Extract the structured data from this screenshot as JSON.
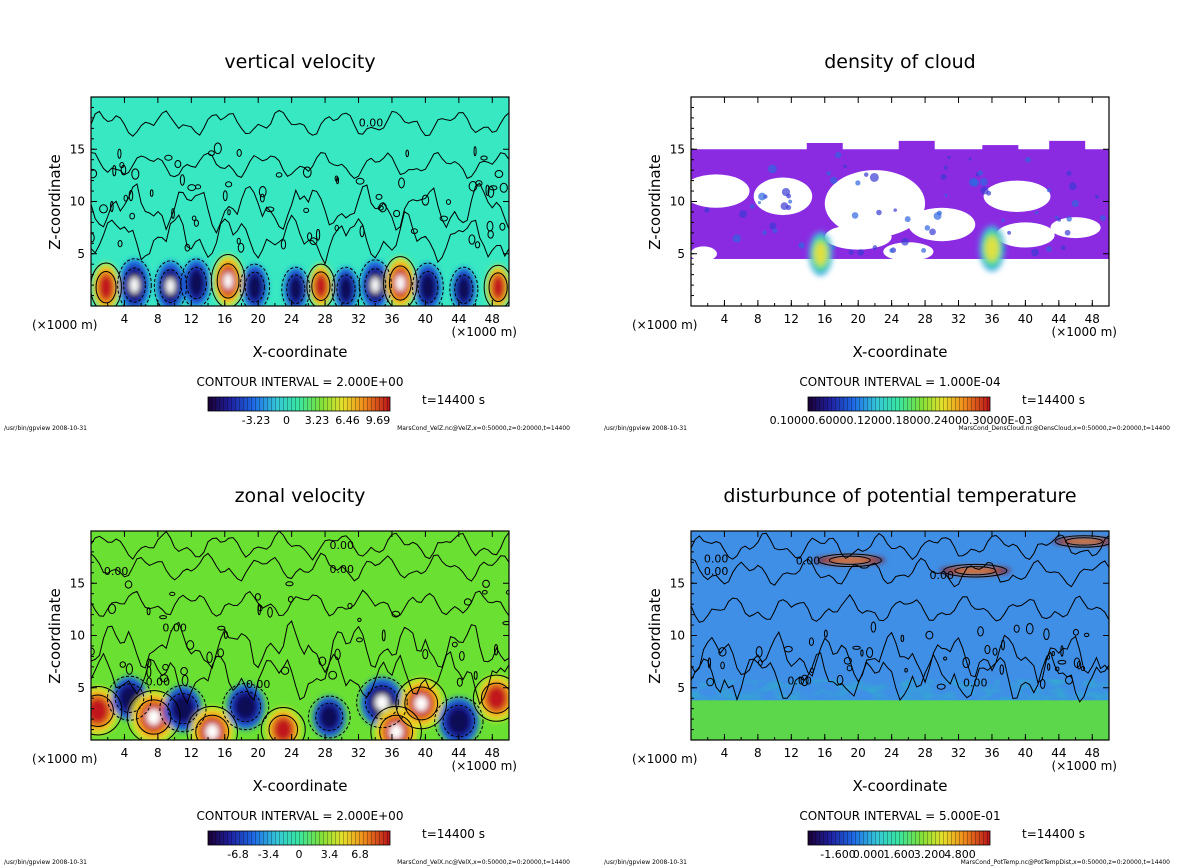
{
  "chart_data": [
    {
      "type": "heatmap",
      "title": "vertical velocity",
      "xlabel": "X-coordinate",
      "ylabel": "Z-coordinate",
      "x_ticks": [
        "4",
        "8",
        "12",
        "16",
        "20",
        "24",
        "28",
        "32",
        "36",
        "40",
        "44",
        "48"
      ],
      "y_ticks": [
        "5",
        "10",
        "15"
      ],
      "x_unit_left": "(×1000 m)",
      "x_unit_right": "(×1000 m)",
      "xlim": [
        0,
        50
      ],
      "ylim": [
        0,
        20
      ],
      "contour_interval": "CONTOUR INTERVAL = 2.000E+00",
      "time": "t=14400 s",
      "colorbar_ticks": [
        "-3.23",
        "0",
        "3.23",
        "6.46",
        "9.69"
      ],
      "contour_labels": [
        "0.00"
      ],
      "colormap": "rainbow",
      "background_color": "#38e8c2",
      "footer_left": "/usr/bin/gpview   2008-10-31",
      "footer_right": "MarsCond_VelZ.nc@VelZ,x=0:50000,z=0:20000,t=14400",
      "features": [
        {
          "x": 1.8,
          "z": 1.8,
          "sign": 1,
          "mag": 0.8
        },
        {
          "x": 5.2,
          "z": 2.0,
          "sign": -1,
          "mag": 1.0
        },
        {
          "x": 9.5,
          "z": 1.9,
          "sign": -1,
          "mag": 0.9
        },
        {
          "x": 12.6,
          "z": 2.2,
          "sign": -1,
          "mag": 0.8
        },
        {
          "x": 16.4,
          "z": 2.4,
          "sign": 1,
          "mag": 1.0
        },
        {
          "x": 19.6,
          "z": 1.8,
          "sign": -1,
          "mag": 0.7
        },
        {
          "x": 24.5,
          "z": 1.6,
          "sign": -1,
          "mag": 0.6
        },
        {
          "x": 27.5,
          "z": 1.9,
          "sign": 1,
          "mag": 0.6
        },
        {
          "x": 30.5,
          "z": 1.6,
          "sign": -1,
          "mag": 0.6
        },
        {
          "x": 34.0,
          "z": 2.0,
          "sign": -1,
          "mag": 0.9
        },
        {
          "x": 37.0,
          "z": 2.2,
          "sign": 1,
          "mag": 1.0
        },
        {
          "x": 40.3,
          "z": 1.8,
          "sign": -1,
          "mag": 0.8
        },
        {
          "x": 44.6,
          "z": 1.6,
          "sign": -1,
          "mag": 0.6
        },
        {
          "x": 48.7,
          "z": 1.8,
          "sign": 1,
          "mag": 0.6
        }
      ]
    },
    {
      "type": "heatmap",
      "title": "density of cloud",
      "xlabel": "X-coordinate",
      "ylabel": "Z-coordinate",
      "x_ticks": [
        "4",
        "8",
        "12",
        "16",
        "20",
        "24",
        "28",
        "32",
        "36",
        "40",
        "44",
        "48"
      ],
      "y_ticks": [
        "5",
        "10",
        "15"
      ],
      "x_unit_left": "(×1000 m)",
      "x_unit_right": "(×1000 m)",
      "xlim": [
        0,
        50
      ],
      "ylim": [
        0,
        20
      ],
      "contour_interval": "CONTOUR INTERVAL = 1.000E-04",
      "time": "t=14400 s",
      "colorbar_ticks": [
        "0.10000.60000.12000.18000.24000.30000E-03"
      ],
      "colormap": "rainbow",
      "background_color": "#ffffff",
      "cloud_color": "#8a2be2",
      "footer_left": "/usr/bin/gpview   2008-10-31",
      "footer_right": "MarsCond_DensCloud.nc@DensCloud,x=0:50000,z=0:20000,t=14400",
      "features": [
        {
          "x": 15.5,
          "z": 5.0,
          "sign": 1,
          "mag": 0.6
        },
        {
          "x": 36.0,
          "z": 5.5,
          "sign": 1,
          "mag": 0.7
        }
      ]
    },
    {
      "type": "heatmap",
      "title": "zonal velocity",
      "xlabel": "X-coordinate",
      "ylabel": "Z-coordinate",
      "x_ticks": [
        "4",
        "8",
        "12",
        "16",
        "20",
        "24",
        "28",
        "32",
        "36",
        "40",
        "44",
        "48"
      ],
      "y_ticks": [
        "5",
        "10",
        "15"
      ],
      "x_unit_left": "(×1000 m)",
      "x_unit_right": "(×1000 m)",
      "xlim": [
        0,
        50
      ],
      "ylim": [
        0,
        20
      ],
      "contour_interval": "CONTOUR INTERVAL = 2.000E+00",
      "time": "t=14400 s",
      "colorbar_ticks": [
        "-6.8",
        "-3.4",
        "0",
        "3.4",
        "6.8"
      ],
      "contour_labels": [
        "0.00"
      ],
      "colormap": "rainbow",
      "background_color": "#6ae033",
      "footer_left": "/usr/bin/gpview   2008-10-31",
      "footer_right": "MarsCond_VelX.nc@VelX,x=0:50000,z=0:20000,t=14400",
      "features": [
        {
          "x": 0.8,
          "z": 2.8,
          "sign": 1,
          "mag": 0.8
        },
        {
          "x": 4.6,
          "z": 4.0,
          "sign": -1,
          "mag": 0.6
        },
        {
          "x": 7.5,
          "z": 2.2,
          "sign": 1,
          "mag": 1.0
        },
        {
          "x": 11.0,
          "z": 3.0,
          "sign": -1,
          "mag": 0.7
        },
        {
          "x": 14.5,
          "z": 0.8,
          "sign": 1,
          "mag": 0.9
        },
        {
          "x": 18.5,
          "z": 3.2,
          "sign": -1,
          "mag": 0.7
        },
        {
          "x": 23.0,
          "z": 1.0,
          "sign": 1,
          "mag": 0.6
        },
        {
          "x": 28.5,
          "z": 2.2,
          "sign": -1,
          "mag": 0.5
        },
        {
          "x": 34.8,
          "z": 3.6,
          "sign": -1,
          "mag": 0.9
        },
        {
          "x": 36.5,
          "z": 0.8,
          "sign": 1,
          "mag": 0.9
        },
        {
          "x": 39.5,
          "z": 3.5,
          "sign": 1,
          "mag": 0.9
        },
        {
          "x": 44.0,
          "z": 1.8,
          "sign": -1,
          "mag": 0.8
        },
        {
          "x": 48.5,
          "z": 4.0,
          "sign": 1,
          "mag": 0.7
        }
      ]
    },
    {
      "type": "heatmap",
      "title": "disturbunce of potential temperature",
      "xlabel": "X-coordinate",
      "ylabel": "Z-coordinate",
      "x_ticks": [
        "4",
        "8",
        "12",
        "16",
        "20",
        "24",
        "28",
        "32",
        "36",
        "40",
        "44",
        "48"
      ],
      "y_ticks": [
        "5",
        "10",
        "15"
      ],
      "x_unit_left": "(×1000 m)",
      "x_unit_right": "(×1000 m)",
      "xlim": [
        0,
        50
      ],
      "ylim": [
        0,
        20
      ],
      "contour_interval": "CONTOUR INTERVAL = 5.000E-01",
      "time": "t=14400 s",
      "colorbar_ticks": [
        "-1.600",
        "0.000",
        "1.600",
        "3.200",
        "4.800"
      ],
      "contour_labels": [
        "0.00"
      ],
      "colormap": "rainbow",
      "background_color": "#3f8fe6",
      "low_layer_color": "#5cd64a",
      "footer_left": "/usr/bin/gpview   2008-10-31",
      "footer_right": "MarsCond_PotTemp.nc@PotTempDist,x=0:50000,z=0:20000,t=14400",
      "features": [
        {
          "x": 19.0,
          "z": 17.2,
          "sign": 1,
          "mag": 0.7
        },
        {
          "x": 34.0,
          "z": 16.2,
          "sign": 1,
          "mag": 0.7
        },
        {
          "x": 47.0,
          "z": 19.0,
          "sign": 1,
          "mag": 0.5
        }
      ]
    }
  ]
}
